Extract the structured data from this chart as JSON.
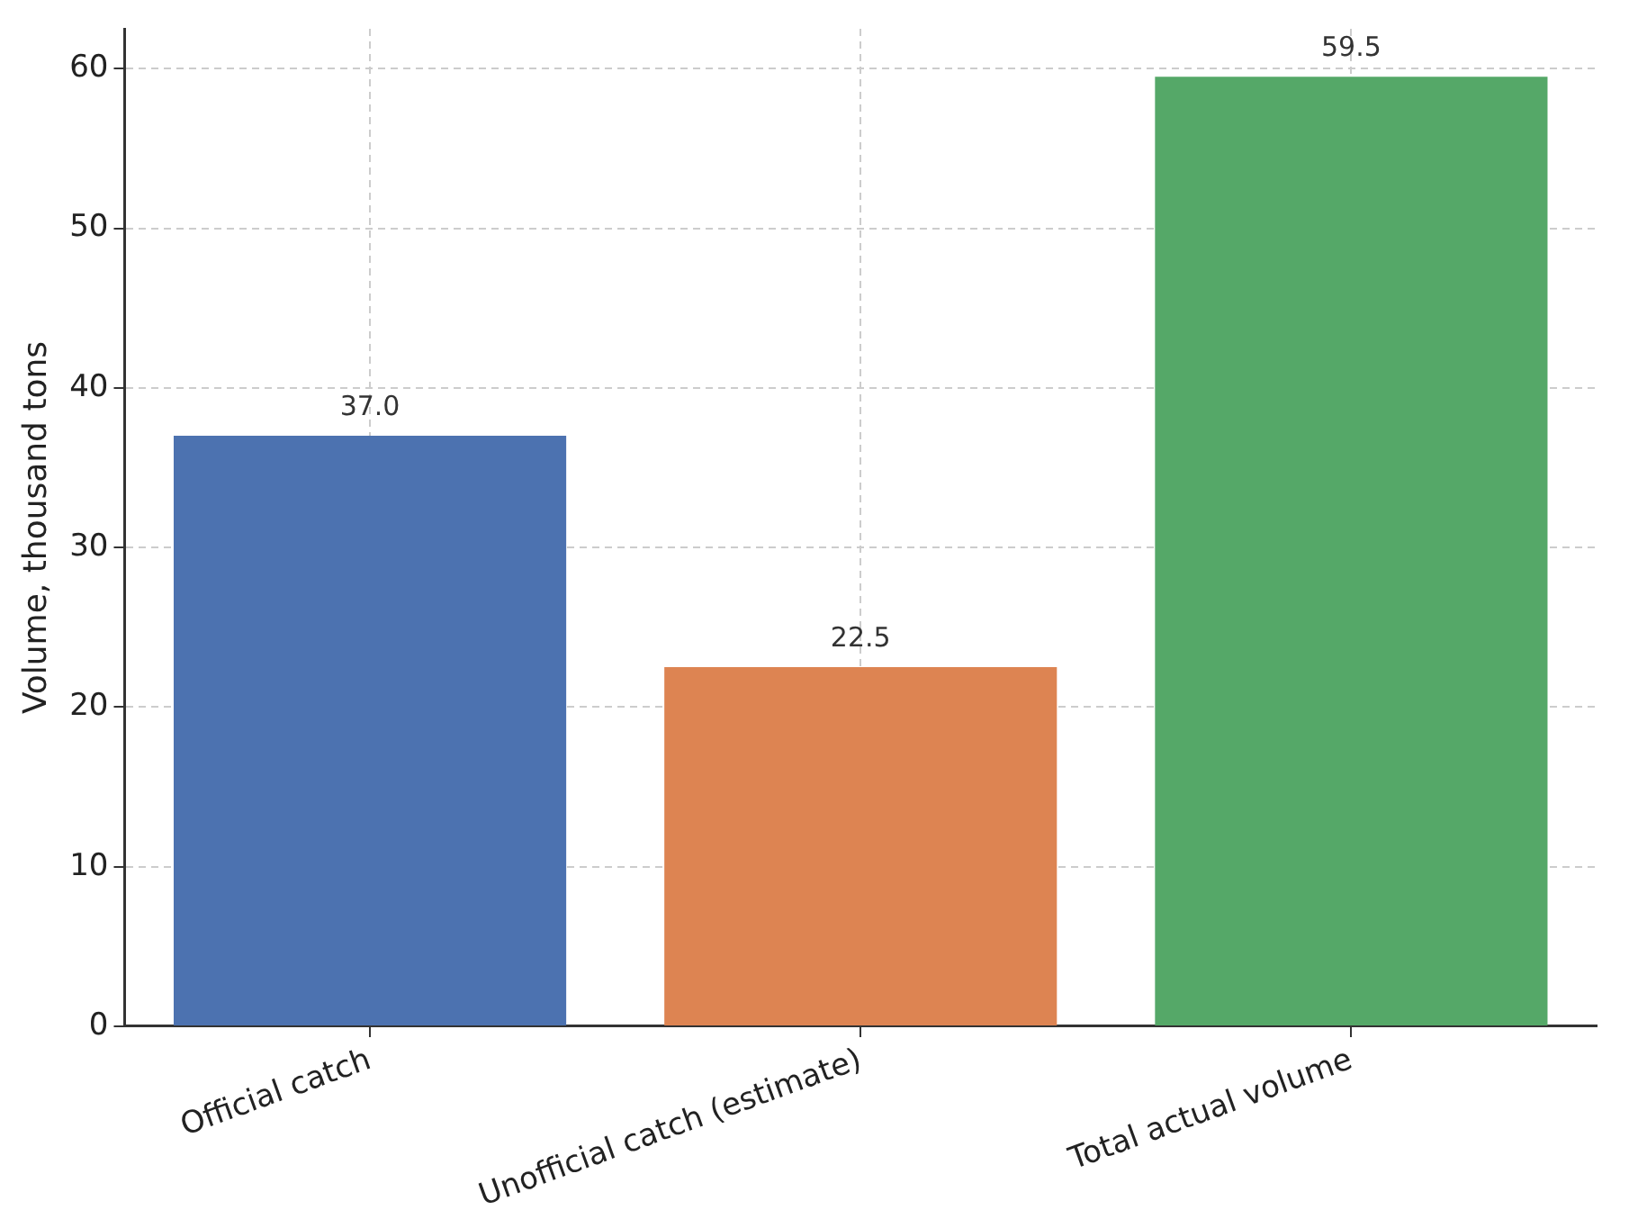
{
  "chart_data": {
    "type": "bar",
    "ylabel": "Volume, thousand tons",
    "categories": [
      "Official catch",
      "Unofficial catch (estimate)",
      "Total actual volume"
    ],
    "values": [
      37.0,
      22.5,
      59.5
    ],
    "colors": [
      "#4c72b0",
      "#dd8452",
      "#55a868"
    ],
    "ylim": [
      0,
      62.5
    ],
    "yticks": [
      0,
      10,
      20,
      30,
      40,
      50,
      60
    ],
    "value_labels": [
      "37.0",
      "22.5",
      "59.5"
    ],
    "grid": true,
    "legend": false
  }
}
